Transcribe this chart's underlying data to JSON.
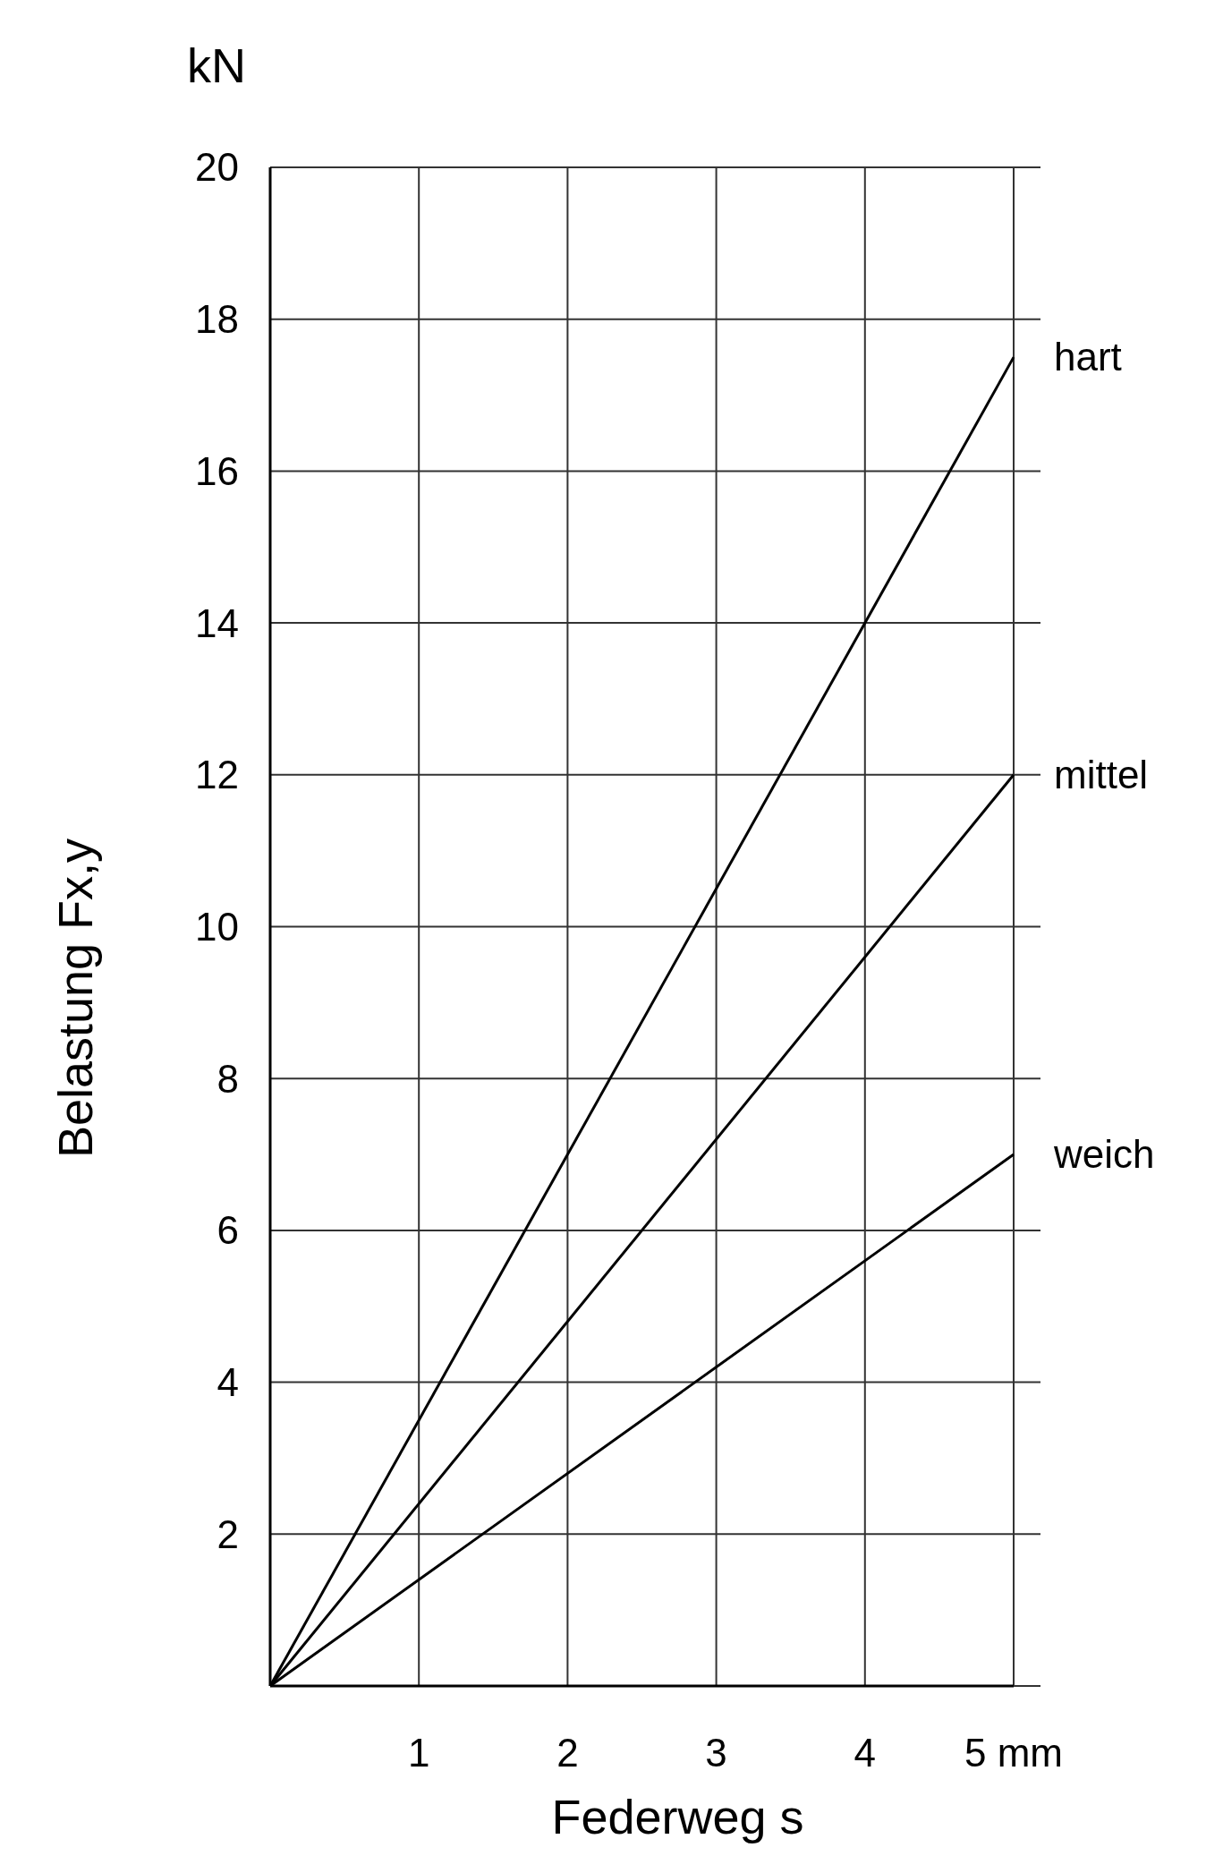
{
  "chart_data": {
    "type": "line",
    "xlabel": "Federweg s",
    "ylabel": "Belastung Fx,y",
    "annotations": [
      "kN"
    ],
    "x": [
      0,
      5
    ],
    "series": [
      {
        "name": "hart",
        "color": "#000000",
        "values": [
          0,
          17.5
        ]
      },
      {
        "name": "mittel",
        "color": "#000000",
        "values": [
          0,
          12
        ]
      },
      {
        "name": "weich",
        "color": "#000000",
        "values": [
          0,
          7
        ]
      }
    ],
    "xlim": [
      0,
      5
    ],
    "xticks": [
      {
        "value": 0,
        "label": null
      },
      1,
      2,
      3,
      4,
      {
        "value": 5,
        "label": "5 mm"
      }
    ],
    "ylim": [
      0,
      20
    ],
    "yticks": [
      {
        "value": 0,
        "label": null
      },
      2,
      4,
      6,
      8,
      10,
      12,
      14,
      16,
      18,
      20
    ],
    "grid": true,
    "legend": false,
    "marker": "none",
    "line_style": "solid"
  }
}
